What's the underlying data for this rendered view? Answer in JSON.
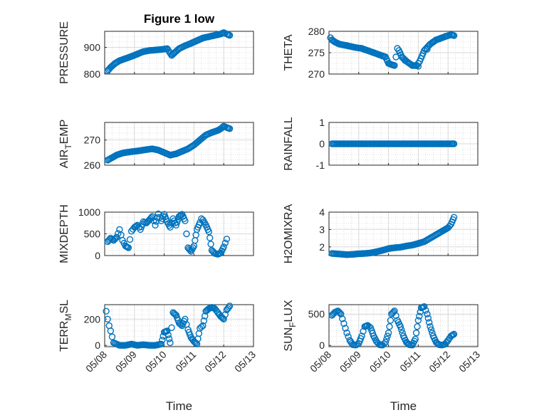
{
  "chart_data": [
    {
      "type": "scatter",
      "title": "Figure 1 low",
      "ylabel": "PRESSURE",
      "ylim": [
        800,
        960
      ],
      "yticks": [
        800,
        900
      ],
      "ytick_labels": [
        "800",
        "900"
      ],
      "xlim": [
        0,
        5
      ],
      "xticks": [
        0,
        1,
        2,
        3,
        4,
        5
      ],
      "x_tick_labels": [],
      "xlabel": "",
      "x": [
        0.1,
        0.2,
        0.35,
        0.5,
        0.7,
        0.9,
        1.1,
        1.3,
        1.5,
        1.7,
        1.9,
        2.1,
        2.25,
        2.35,
        2.5,
        2.7,
        2.9,
        3.1,
        3.3,
        3.5,
        3.7,
        3.9,
        4.0,
        4.1,
        4.2
      ],
      "y": [
        812,
        825,
        840,
        850,
        858,
        866,
        875,
        884,
        888,
        890,
        892,
        895,
        870,
        880,
        895,
        906,
        915,
        925,
        935,
        940,
        945,
        950,
        955,
        950,
        945
      ]
    },
    {
      "type": "scatter",
      "title": "",
      "ylabel": "THETA",
      "ylim": [
        270,
        280
      ],
      "yticks": [
        270,
        275,
        280
      ],
      "ytick_labels": [
        "270",
        "275",
        "280"
      ],
      "xlim": [
        0,
        5
      ],
      "xticks": [
        0,
        1,
        2,
        3,
        4,
        5
      ],
      "x_tick_labels": [],
      "xlabel": "",
      "x": [
        0.1,
        0.2,
        0.35,
        0.5,
        0.7,
        0.9,
        1.1,
        1.3,
        1.5,
        1.7,
        1.9,
        2.0,
        2.1,
        2.2,
        2.3,
        2.35,
        2.45,
        2.6,
        2.8,
        2.95,
        3.05,
        3.2,
        3.4,
        3.6,
        3.8,
        4.0,
        4.1,
        4.2
      ],
      "y": [
        278,
        277.5,
        277,
        276.8,
        276.5,
        276.2,
        276,
        275.5,
        275,
        274.5,
        274,
        272.5,
        272.2,
        272,
        276,
        275.5,
        274,
        273,
        272,
        272,
        273,
        275.5,
        277,
        278,
        278.5,
        279,
        279.2,
        279
      ],
      "x_extra": [
        0.05,
        0.6,
        1.2,
        1.8,
        2.55,
        3.0,
        3.3,
        3.5,
        3.7,
        3.9
      ],
      "y_extra": [
        278.5,
        276.7,
        275.7,
        274.2,
        273.2,
        271.8,
        275.8,
        277.5,
        278.2,
        278.8
      ]
    },
    {
      "type": "scatter",
      "title": "",
      "ylabel": "AIR_TEMP",
      "ylabel_main": "AIR",
      "ylabel_sub": "T",
      "ylabel_rest": "EMP",
      "ylim": [
        260,
        277
      ],
      "yticks": [
        260,
        270
      ],
      "ytick_labels": [
        "260",
        "270"
      ],
      "xlim": [
        0,
        5
      ],
      "xticks": [
        0,
        1,
        2,
        3,
        4,
        5
      ],
      "x_tick_labels": [],
      "xlabel": "",
      "x": [
        0.1,
        0.25,
        0.4,
        0.6,
        0.8,
        1.0,
        1.2,
        1.4,
        1.6,
        1.8,
        2.0,
        2.2,
        2.4,
        2.6,
        2.8,
        3.0,
        3.2,
        3.4,
        3.6,
        3.8,
        3.9,
        4.0,
        4.1,
        4.2
      ],
      "y": [
        262,
        263,
        264,
        264.8,
        265.2,
        265.5,
        265.8,
        266.2,
        266.5,
        266,
        265,
        264,
        264.5,
        265.5,
        266.5,
        268,
        270,
        272,
        273,
        273.8,
        274.5,
        275.5,
        275,
        274.5
      ]
    },
    {
      "type": "scatter",
      "title": "",
      "ylabel": "RAINFALL",
      "ylim": [
        -1,
        1
      ],
      "yticks": [
        -1,
        0,
        1
      ],
      "ytick_labels": [
        "-1",
        "0",
        "1"
      ],
      "xlim": [
        0,
        5
      ],
      "xticks": [
        0,
        1,
        2,
        3,
        4,
        5
      ],
      "x_tick_labels": [],
      "xlabel": "",
      "x": [
        0.1,
        0.3,
        0.5,
        0.7,
        0.9,
        1.1,
        1.3,
        1.5,
        1.7,
        1.9,
        2.1,
        2.3,
        2.5,
        2.7,
        2.9,
        3.1,
        3.3,
        3.5,
        3.7,
        3.9,
        4.1,
        4.2
      ],
      "y": [
        0,
        0,
        0,
        0,
        0,
        0,
        0,
        0,
        0,
        0,
        0,
        0,
        0,
        0,
        0,
        0,
        0,
        0,
        0,
        0,
        0,
        0
      ]
    },
    {
      "type": "scatter",
      "title": "",
      "ylabel": "MIXDEPTH",
      "ylim": [
        0,
        1000
      ],
      "yticks": [
        0,
        500,
        1000
      ],
      "ytick_labels": [
        "0",
        "500",
        "1000"
      ],
      "xlim": [
        0,
        5
      ],
      "xticks": [
        0,
        1,
        2,
        3,
        4,
        5
      ],
      "x_tick_labels": [],
      "xlabel": "",
      "x": [
        0.1,
        0.2,
        0.3,
        0.4,
        0.5,
        0.6,
        0.7,
        0.8,
        0.9,
        1.0,
        1.1,
        1.2,
        1.3,
        1.4,
        1.5,
        1.6,
        1.7,
        1.8,
        1.9,
        2.0,
        2.1,
        2.2,
        2.3,
        2.4,
        2.5,
        2.6,
        2.7,
        2.75,
        2.8,
        2.9,
        3.0,
        3.1,
        3.2,
        3.25,
        3.3,
        3.4,
        3.5,
        3.6,
        3.7,
        3.8,
        3.9,
        4.0,
        4.1
      ],
      "y": [
        320,
        400,
        350,
        420,
        600,
        350,
        220,
        180,
        560,
        650,
        700,
        600,
        780,
        750,
        820,
        900,
        700,
        960,
        800,
        950,
        780,
        650,
        850,
        700,
        900,
        950,
        800,
        500,
        180,
        100,
        220,
        600,
        760,
        850,
        820,
        700,
        550,
        120,
        50,
        30,
        60,
        200,
        380
      ]
    },
    {
      "type": "scatter",
      "title": "",
      "ylabel": "H2OMIXRA",
      "ylim": [
        1.5,
        4
      ],
      "yticks": [
        2,
        3,
        4
      ],
      "ytick_labels": [
        "2",
        "3",
        "4"
      ],
      "xlim": [
        0,
        5
      ],
      "xticks": [
        0,
        1,
        2,
        3,
        4,
        5
      ],
      "x_tick_labels": [],
      "xlabel": "",
      "x": [
        0.1,
        0.25,
        0.4,
        0.6,
        0.8,
        1.0,
        1.2,
        1.4,
        1.6,
        1.8,
        2.0,
        2.2,
        2.4,
        2.6,
        2.8,
        3.0,
        3.2,
        3.4,
        3.6,
        3.8,
        3.9,
        4.0,
        4.1,
        4.2
      ],
      "y": [
        1.62,
        1.6,
        1.58,
        1.55,
        1.57,
        1.6,
        1.62,
        1.65,
        1.72,
        1.8,
        1.9,
        1.95,
        1.98,
        2.05,
        2.1,
        2.2,
        2.3,
        2.5,
        2.7,
        2.9,
        3.0,
        3.1,
        3.3,
        3.7
      ]
    },
    {
      "type": "scatter",
      "title": "",
      "ylabel": "TERR_MSL",
      "ylabel_main": "TERR",
      "ylabel_sub": "M",
      "ylabel_rest": "SL",
      "ylim": [
        -10,
        310
      ],
      "yticks": [
        0,
        200
      ],
      "ytick_labels": [
        "0",
        "200"
      ],
      "xlim": [
        0,
        5
      ],
      "xticks": [
        0,
        1,
        2,
        3,
        4,
        5
      ],
      "x_tick_labels": [
        "05/08",
        "05/09",
        "05/10",
        "05/11",
        "05/12",
        "05/13"
      ],
      "xlabel": "Time",
      "x": [
        0.05,
        0.1,
        0.15,
        0.2,
        0.3,
        0.5,
        0.7,
        0.9,
        1.1,
        1.3,
        1.5,
        1.7,
        1.9,
        2.0,
        2.1,
        2.2,
        2.3,
        2.4,
        2.5,
        2.6,
        2.7,
        2.8,
        2.9,
        3.0,
        3.1,
        3.2,
        3.3,
        3.4,
        3.5,
        3.6,
        3.7,
        3.8,
        3.9,
        4.0,
        4.1,
        4.2
      ],
      "y": [
        260,
        200,
        150,
        110,
        20,
        0,
        0,
        10,
        0,
        5,
        0,
        0,
        10,
        100,
        110,
        20,
        250,
        230,
        170,
        150,
        200,
        120,
        60,
        30,
        10,
        130,
        150,
        260,
        280,
        290,
        280,
        250,
        220,
        200,
        270,
        300
      ]
    },
    {
      "type": "scatter",
      "title": "",
      "ylabel": "SUN_FLUX",
      "ylabel_main": "SUN",
      "ylabel_sub": "F",
      "ylabel_rest": "LUX",
      "ylim": [
        -20,
        650
      ],
      "yticks": [
        0,
        500
      ],
      "ytick_labels": [
        "0",
        "500"
      ],
      "xlim": [
        0,
        5
      ],
      "xticks": [
        0,
        1,
        2,
        3,
        4,
        5
      ],
      "x_tick_labels": [
        "05/08",
        "05/09",
        "05/10",
        "05/11",
        "05/12",
        "05/13"
      ],
      "xlabel": "Time",
      "x": [
        0.1,
        0.2,
        0.3,
        0.4,
        0.5,
        0.6,
        0.7,
        0.8,
        0.9,
        1.0,
        1.1,
        1.2,
        1.3,
        1.4,
        1.5,
        1.6,
        1.7,
        1.8,
        1.9,
        2.0,
        2.1,
        2.2,
        2.3,
        2.4,
        2.5,
        2.6,
        2.7,
        2.8,
        2.9,
        3.0,
        3.1,
        3.2,
        3.3,
        3.4,
        3.5,
        3.6,
        3.7,
        3.8,
        3.9,
        4.0,
        4.1,
        4.2
      ],
      "y": [
        480,
        530,
        550,
        500,
        350,
        200,
        80,
        10,
        5,
        30,
        150,
        300,
        320,
        280,
        150,
        60,
        10,
        5,
        50,
        200,
        500,
        550,
        400,
        300,
        150,
        50,
        10,
        5,
        100,
        400,
        600,
        620,
        500,
        300,
        150,
        50,
        10,
        5,
        20,
        80,
        150,
        180
      ]
    }
  ]
}
